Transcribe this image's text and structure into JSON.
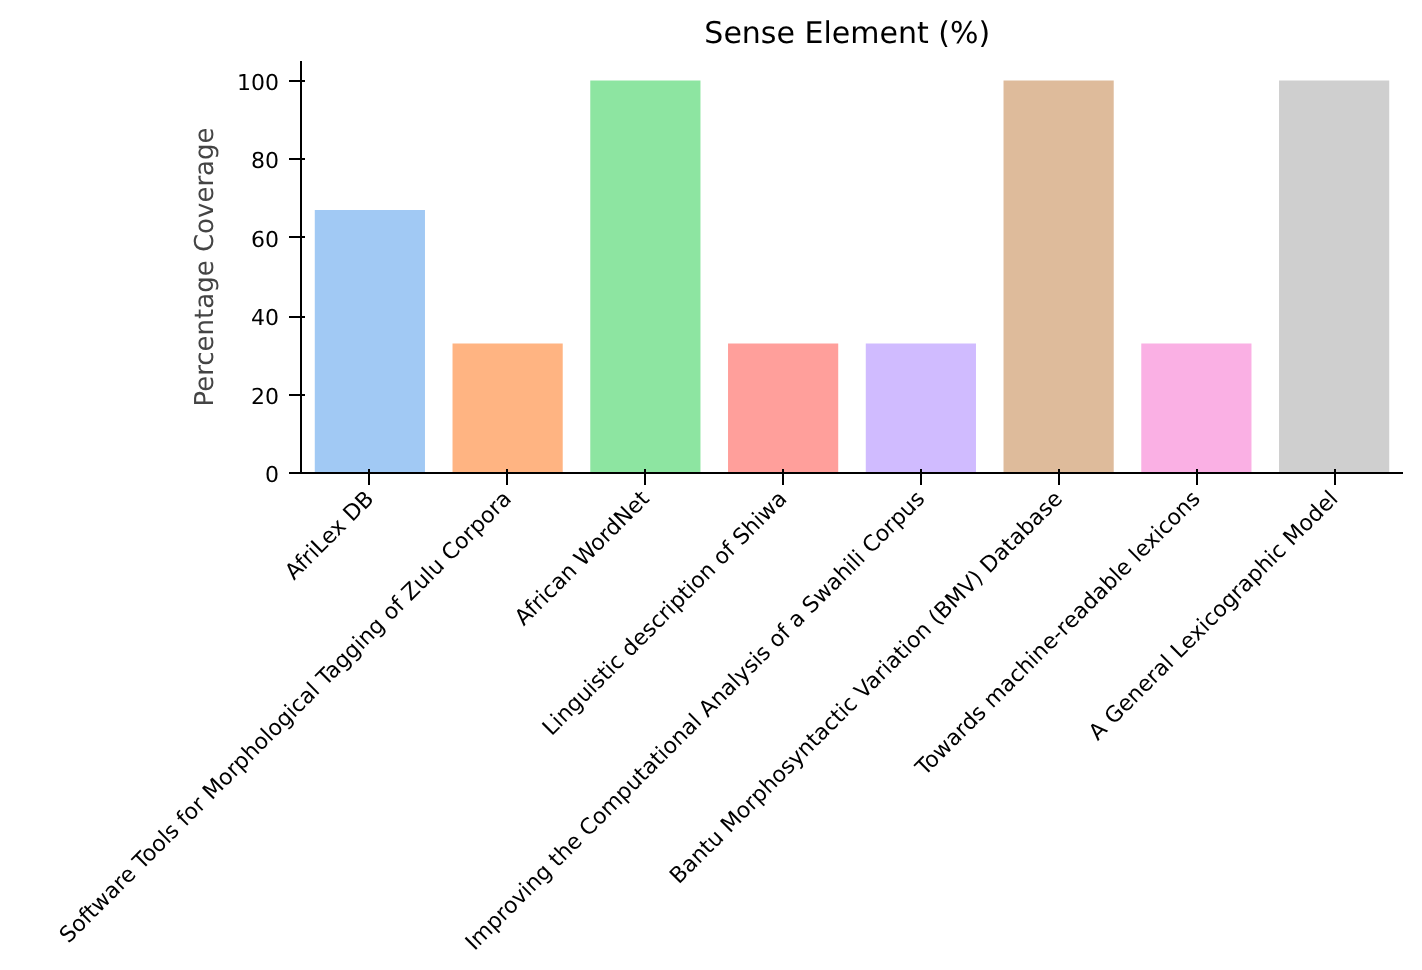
{
  "chart_data": {
    "type": "bar",
    "title": "Sense Element  (%)",
    "ylabel": "Percentage Coverage",
    "categories": [
      "AfriLex DB",
      "Software Tools for Morphological Tagging of Zulu Corpora",
      "African WordNet",
      "Linguistic description of Shiwa",
      "Improving the Computational Analysis of a Swahili Corpus",
      "Bantu Morphosyntactic Variation (BMV) Database",
      "Towards machine-readable lexicons",
      "A General Lexicographic Model"
    ],
    "values": [
      67,
      33,
      100,
      33,
      33,
      100,
      33,
      100
    ],
    "colors": [
      "#a1c9f4",
      "#ffb482",
      "#8de5a1",
      "#ff9f9b",
      "#d0bbff",
      "#debb9b",
      "#fab0e4",
      "#cfcfcf"
    ],
    "ylim": [
      0,
      105
    ],
    "yticks": [
      0,
      20,
      40,
      60,
      80,
      100
    ],
    "grid": false
  }
}
